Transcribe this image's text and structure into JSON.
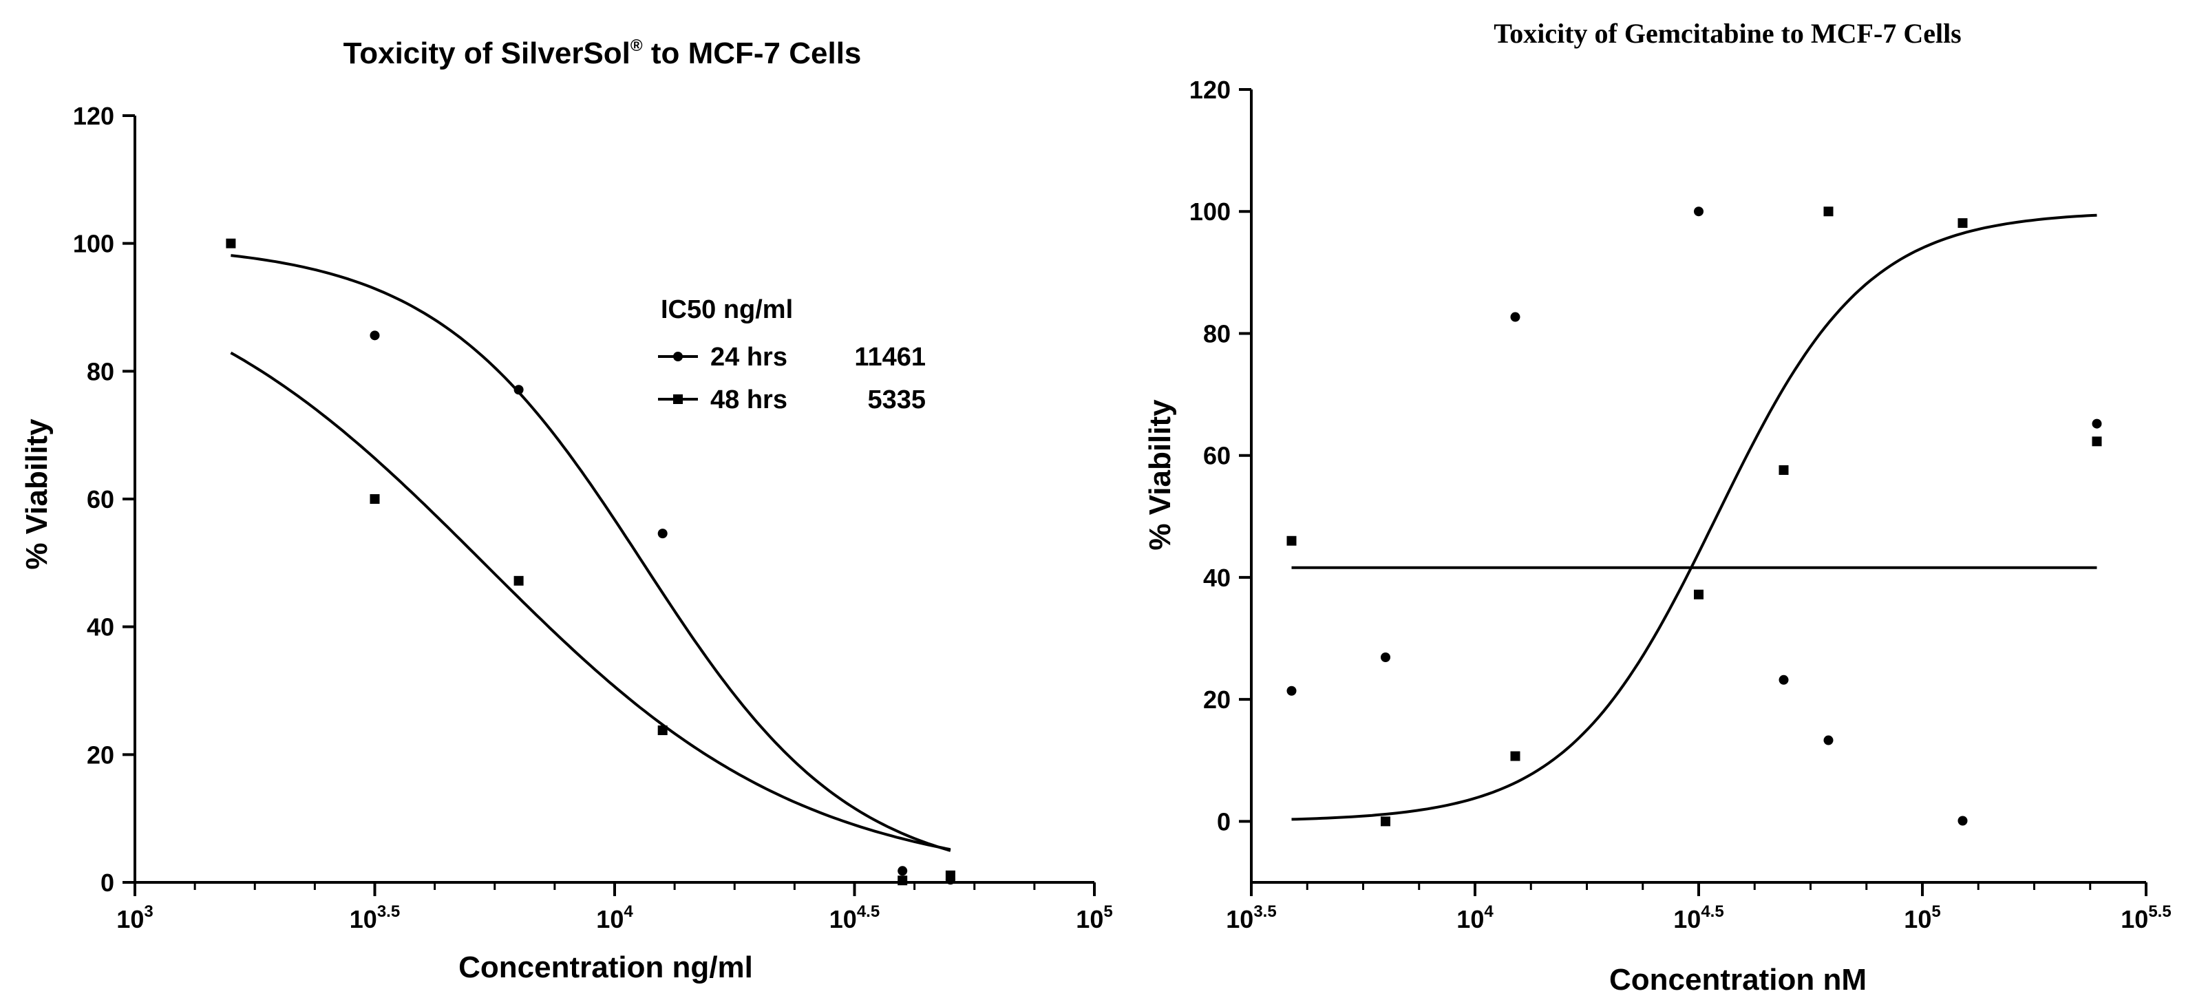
{
  "chart_data": [
    {
      "type": "scatter",
      "title": "Toxicity of SilverSol",
      "title_mark": "®",
      "title_suffix": " to MCF-7 Cells",
      "xlabel": "Concentration ng/ml",
      "ylabel": "% Viability",
      "x_scale": "log",
      "xlim_log10": [
        3,
        5
      ],
      "x_ticks": [
        {
          "base": "10",
          "exp": "3"
        },
        {
          "base": "10",
          "exp": "3.5"
        },
        {
          "base": "10",
          "exp": "4"
        },
        {
          "base": "10",
          "exp": "4.5"
        },
        {
          "base": "10",
          "exp": "5"
        }
      ],
      "ylim": [
        0,
        120
      ],
      "y_ticks": [
        "0",
        "20",
        "40",
        "60",
        "80",
        "100",
        "120"
      ],
      "grid": false,
      "legend": {
        "title": "IC50 ng/ml",
        "placement": "upper-center",
        "entries": [
          {
            "label": "24 hrs",
            "value": "11461",
            "marker": "circle"
          },
          {
            "label": "48 hrs",
            "value": "5335",
            "marker": "square"
          }
        ]
      },
      "series": [
        {
          "name": "24 hrs",
          "marker": "circle",
          "x_log10": [
            3.5,
            3.8,
            4.1,
            4.6,
            4.7
          ],
          "y": [
            85.6,
            77.1,
            54.6,
            1.8,
            0.4
          ],
          "fit": {
            "top": 100,
            "bottom": 0,
            "log_ic50": 4.059,
            "hill": -2.0,
            "x_log10_range": [
              3.2,
              4.7
            ]
          }
        },
        {
          "name": "48 hrs",
          "marker": "square",
          "x_log10": [
            3.2,
            3.5,
            3.8,
            4.1,
            4.6,
            4.7
          ],
          "y": [
            100.0,
            60.0,
            47.2,
            23.8,
            0.3,
            1.1
          ],
          "fit": {
            "top": 100,
            "bottom": 0,
            "log_ic50": 3.727,
            "hill": -1.3,
            "x_log10_range": [
              3.2,
              4.7
            ]
          }
        }
      ]
    },
    {
      "type": "scatter",
      "title": "Toxicity of Gemcitabine to MCF-7 Cells",
      "xlabel": "Concentration nM",
      "ylabel": "% Viability",
      "x_scale": "log",
      "xlim_log10": [
        3.5,
        5.5
      ],
      "x_ticks": [
        {
          "base": "10",
          "exp": "3.5"
        },
        {
          "base": "10",
          "exp": "4"
        },
        {
          "base": "10",
          "exp": "4.5"
        },
        {
          "base": "10",
          "exp": "5"
        },
        {
          "base": "10",
          "exp": "5.5"
        }
      ],
      "ylim": [
        -10,
        120
      ],
      "y_ticks": [
        "0",
        "20",
        "40",
        "60",
        "80",
        "100",
        "120"
      ],
      "grid": false,
      "series": [
        {
          "name": "circles",
          "marker": "circle",
          "x_log10": [
            3.59,
            3.8,
            4.09,
            4.5,
            4.69,
            4.79,
            5.09,
            5.39
          ],
          "y": [
            21.4,
            26.9,
            82.7,
            100.0,
            23.2,
            13.3,
            0.1,
            65.2
          ],
          "fit": {
            "type": "constant",
            "value": 41.6,
            "x_log10_range": [
              3.59,
              5.39
            ]
          }
        },
        {
          "name": "squares",
          "marker": "square",
          "x_log10": [
            3.59,
            3.8,
            4.09,
            4.5,
            4.69,
            4.79,
            5.09,
            5.39
          ],
          "y": [
            46.0,
            0.0,
            10.7,
            37.2,
            57.6,
            100.0,
            98.1,
            62.3
          ],
          "fit": {
            "top": 100,
            "bottom": 0,
            "log_ic50": 4.54,
            "hill": 2.6,
            "x_log10_range": [
              3.59,
              5.39
            ]
          }
        }
      ]
    }
  ]
}
